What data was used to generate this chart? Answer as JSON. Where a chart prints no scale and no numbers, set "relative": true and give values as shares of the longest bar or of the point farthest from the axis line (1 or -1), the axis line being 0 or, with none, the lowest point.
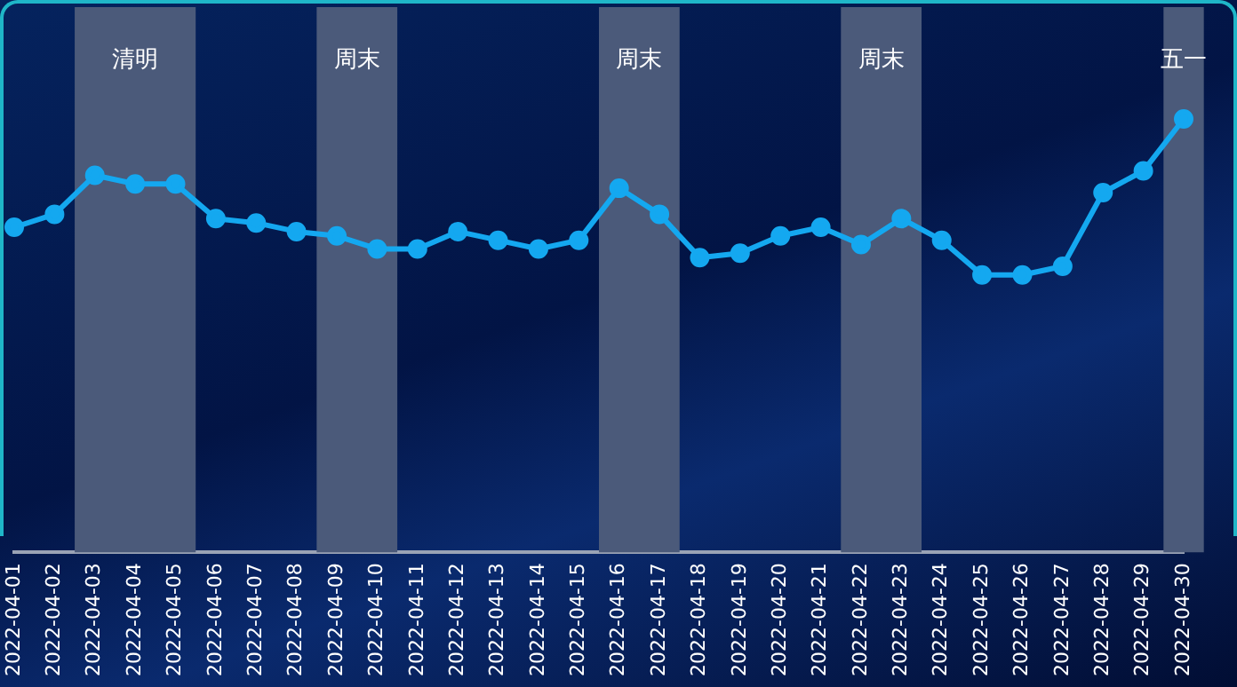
{
  "chart_data": {
    "type": "line",
    "relative": true,
    "categories": [
      "2022-04-01",
      "2022-04-02",
      "2022-04-03",
      "2022-04-04",
      "2022-04-05",
      "2022-04-06",
      "2022-04-07",
      "2022-04-08",
      "2022-04-09",
      "2022-04-10",
      "2022-04-11",
      "2022-04-12",
      "2022-04-13",
      "2022-04-14",
      "2022-04-15",
      "2022-04-16",
      "2022-04-17",
      "2022-04-18",
      "2022-04-19",
      "2022-04-20",
      "2022-04-21",
      "2022-04-22",
      "2022-04-23",
      "2022-04-24",
      "2022-04-25",
      "2022-04-26",
      "2022-04-27",
      "2022-04-28",
      "2022-04-29",
      "2022-04-30"
    ],
    "series": [
      {
        "color": "#14a8f0",
        "values": [
          0.75,
          0.78,
          0.87,
          0.85,
          0.85,
          0.77,
          0.76,
          0.74,
          0.73,
          0.7,
          0.7,
          0.74,
          0.72,
          0.7,
          0.72,
          0.84,
          0.78,
          0.68,
          0.69,
          0.73,
          0.75,
          0.71,
          0.77,
          0.72,
          0.64,
          0.64,
          0.66,
          0.83,
          0.88,
          1
        ]
      }
    ],
    "bands": [
      {
        "axis": "x",
        "from": "2022-04-03",
        "to": "2022-04-05",
        "label": "清明",
        "color": "#4b5a7a"
      },
      {
        "axis": "x",
        "from": "2022-04-09",
        "to": "2022-04-10",
        "label": "周末",
        "color": "#4b5a7a"
      },
      {
        "axis": "x",
        "from": "2022-04-16",
        "to": "2022-04-17",
        "label": "周末",
        "color": "#4b5a7a"
      },
      {
        "axis": "x",
        "from": "2022-04-22",
        "to": "2022-04-23",
        "label": "周末",
        "color": "#4b5a7a"
      },
      {
        "axis": "x",
        "from": "2022-04-30",
        "to": "2022-04-30",
        "label": "五一",
        "color": "#4b5a7a"
      }
    ],
    "marker": "circle",
    "line_style": "solid",
    "grid": false,
    "legend": false
  }
}
